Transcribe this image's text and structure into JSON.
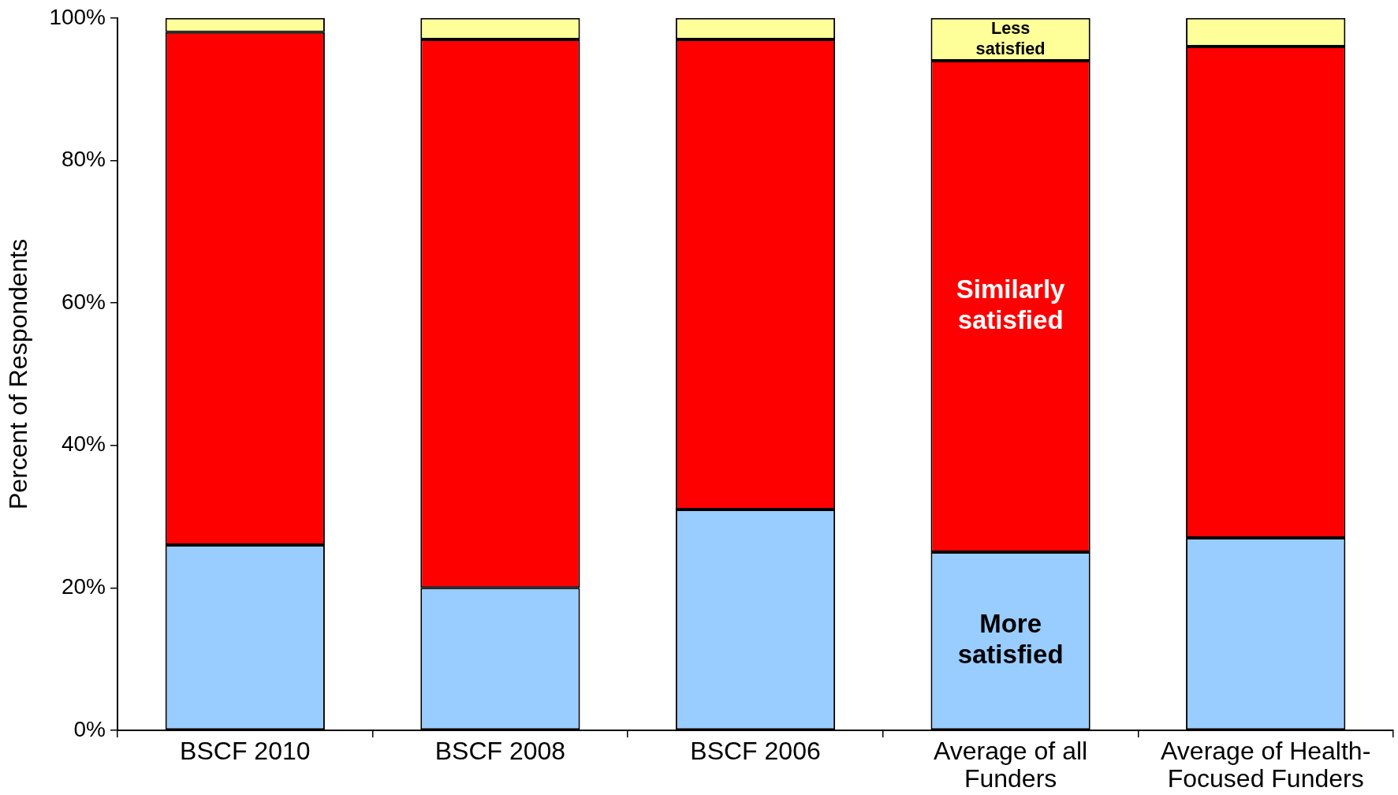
{
  "chart_data": {
    "type": "bar",
    "stacked": true,
    "ylabel": "Percent of Respondents",
    "categories": [
      "BSCF 2010",
      "BSCF 2008",
      "BSCF 2006",
      "Average of all Funders",
      "Average of Health-Focused Funders"
    ],
    "series": [
      {
        "name": "More satisfied",
        "color": "#99ccff",
        "values": [
          26,
          20,
          31,
          25,
          27
        ]
      },
      {
        "name": "Similarly satisfied",
        "color": "#ff0000",
        "values": [
          72,
          77,
          66,
          69,
          69
        ]
      },
      {
        "name": "Less satisfied",
        "color": "#ffff99",
        "values": [
          2,
          3,
          3,
          6,
          4
        ]
      }
    ],
    "ylim": [
      0,
      100
    ],
    "yticks": [
      {
        "value": 0,
        "label": "0%"
      },
      {
        "value": 20,
        "label": "20%"
      },
      {
        "value": 40,
        "label": "40%"
      },
      {
        "value": 60,
        "label": "60%"
      },
      {
        "value": 80,
        "label": "80%"
      },
      {
        "value": 100,
        "label": "100%"
      }
    ],
    "legend": false,
    "grid": false
  }
}
